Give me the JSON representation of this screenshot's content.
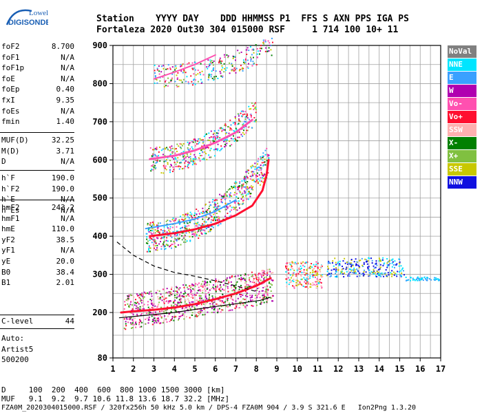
{
  "logo": {
    "line1": "Lowell",
    "line2": "DIGISONDE"
  },
  "header": {
    "row1": "Station    YYYY DAY    DDD HHMMSS P1  FFS S AXN PPS IGA PS",
    "row2": "Fortaleza 2020 Out30 304 015000 RSF     1 714 100 10+ 11"
  },
  "params": {
    "group1": [
      {
        "name": "foF2",
        "value": "8.700"
      },
      {
        "name": "foF1",
        "value": "N/A"
      },
      {
        "name": "foF1p",
        "value": "N/A"
      },
      {
        "name": "foE",
        "value": "N/A"
      },
      {
        "name": "foEp",
        "value": "0.40"
      },
      {
        "name": "fxI",
        "value": "9.35"
      },
      {
        "name": "foEs",
        "value": "N/A"
      },
      {
        "name": "fmin",
        "value": "1.40"
      }
    ],
    "group2": [
      {
        "name": "MUF(D)",
        "value": "32.25"
      },
      {
        "name": "M(D)",
        "value": "3.71"
      },
      {
        "name": "D",
        "value": "N/A"
      }
    ],
    "group3": [
      {
        "name": "h`F",
        "value": "190.0"
      },
      {
        "name": "h`F2",
        "value": "190.0"
      },
      {
        "name": "h`E",
        "value": "N/A"
      },
      {
        "name": "h`Es",
        "value": "N/A"
      }
    ],
    "group4": [
      {
        "name": "hmF2",
        "value": "243.2"
      },
      {
        "name": "hmF1",
        "value": "N/A"
      },
      {
        "name": "hmE",
        "value": "110.0"
      },
      {
        "name": "yF2",
        "value": "38.5"
      },
      {
        "name": "yF1",
        "value": "N/A"
      },
      {
        "name": "yE",
        "value": "20.0"
      },
      {
        "name": "B0",
        "value": "38.4"
      },
      {
        "name": "B1",
        "value": "2.01"
      }
    ],
    "clevel": {
      "name": "C-level",
      "value": "44"
    }
  },
  "auto": {
    "line1": "Auto:",
    "line2": "Artist5",
    "line3": "500200"
  },
  "legend": [
    {
      "label": "NoVal",
      "color": "#808080"
    },
    {
      "label": "NNE",
      "color": "#00e5ff"
    },
    {
      "label": "E",
      "color": "#3aa0ff"
    },
    {
      "label": "W",
      "color": "#b000b0"
    },
    {
      "label": "Vo-",
      "color": "#ff50b0"
    },
    {
      "label": "Vo+",
      "color": "#ff1030"
    },
    {
      "label": "SSW",
      "color": "#ffb0b0"
    },
    {
      "label": "X-",
      "color": "#008000"
    },
    {
      "label": "X+",
      "color": "#80c040"
    },
    {
      "label": "SSE",
      "color": "#c8c800"
    },
    {
      "label": "NNW",
      "color": "#1010e0"
    }
  ],
  "bottom": {
    "d_line": "D     100  200  400  600  800 1000 1500 3000 [km]",
    "muf_line": "MUF   9.1  9.2  9.7 10.6 11.8 13.6 18.7 32.2 [MHz]",
    "footer": "FZA0M_2020304015000.RSF / 320fx256h 50 kHz 5.0 km / DPS-4 FZA0M 904 / 3.9 S 321.6 E   Ion2Png 1.3.20"
  },
  "chart_data": {
    "type": "scatter",
    "title": "",
    "xlabel": "",
    "ylabel": "",
    "xlim": [
      1,
      17
    ],
    "ylim": [
      80,
      900
    ],
    "xticks": [
      1,
      2,
      3,
      4,
      5,
      6,
      7,
      8,
      9,
      10,
      11,
      12,
      13,
      14,
      15,
      16,
      17
    ],
    "yticks": [
      80,
      200,
      300,
      400,
      500,
      600,
      700,
      800,
      900
    ],
    "grid": true,
    "y_grid_step": 50,
    "x_grid_step": 0.5,
    "traces": [
      {
        "name": "profile_dashed",
        "style": "dashed",
        "points": [
          [
            1.2,
            385
          ],
          [
            2,
            350
          ],
          [
            3,
            322
          ],
          [
            4,
            305
          ],
          [
            5,
            295
          ],
          [
            6,
            283
          ],
          [
            7,
            270
          ],
          [
            8,
            255
          ]
        ]
      },
      {
        "name": "profile_solid",
        "style": "solid",
        "points": [
          [
            1.3,
            186
          ],
          [
            2.5,
            192
          ],
          [
            4,
            200
          ],
          [
            5.5,
            212
          ],
          [
            7,
            223
          ],
          [
            8.2,
            232
          ],
          [
            8.7,
            240
          ]
        ]
      }
    ],
    "traces_colors": {
      "profile_dashed": "#000000",
      "profile_solid": "#000000"
    },
    "echo_traces": [
      {
        "color": "#ff1030",
        "width": 3,
        "points": [
          [
            1.4,
            200
          ],
          [
            2,
            203
          ],
          [
            3,
            207
          ],
          [
            4,
            213
          ],
          [
            5,
            222
          ],
          [
            6,
            235
          ],
          [
            7,
            250
          ],
          [
            8,
            270
          ],
          [
            8.7,
            290
          ]
        ]
      },
      {
        "color": "#ff1030",
        "width": 3,
        "points": [
          [
            2.8,
            400
          ],
          [
            4,
            408
          ],
          [
            5,
            418
          ],
          [
            6,
            433
          ],
          [
            7,
            455
          ],
          [
            7.8,
            480
          ],
          [
            8.3,
            520
          ],
          [
            8.5,
            560
          ],
          [
            8.6,
            600
          ]
        ]
      },
      {
        "color": "#ff50b0",
        "width": 3,
        "points": [
          [
            2.8,
            602
          ],
          [
            4,
            611
          ],
          [
            5,
            625
          ],
          [
            6,
            645
          ],
          [
            7,
            672
          ],
          [
            7.8,
            705
          ]
        ]
      },
      {
        "color": "#3aa0ff",
        "width": 2,
        "points": [
          [
            2.6,
            420
          ],
          [
            4,
            433
          ],
          [
            5,
            445
          ],
          [
            6,
            465
          ],
          [
            7,
            495
          ]
        ]
      },
      {
        "color": "#ff50b0",
        "width": 2,
        "points": [
          [
            3,
            812
          ],
          [
            4,
            830
          ],
          [
            5,
            850
          ],
          [
            6,
            875
          ]
        ]
      }
    ],
    "ticks_bottom_labels": [
      "1",
      "2",
      "3",
      "4",
      "5",
      "6",
      "7",
      "8",
      "9",
      "10",
      "11",
      "12",
      "13",
      "14",
      "15",
      "16",
      "17"
    ],
    "ticks_left_labels": [
      "80",
      "200",
      "300",
      "400",
      "500",
      "600",
      "700",
      "800",
      "900"
    ]
  }
}
